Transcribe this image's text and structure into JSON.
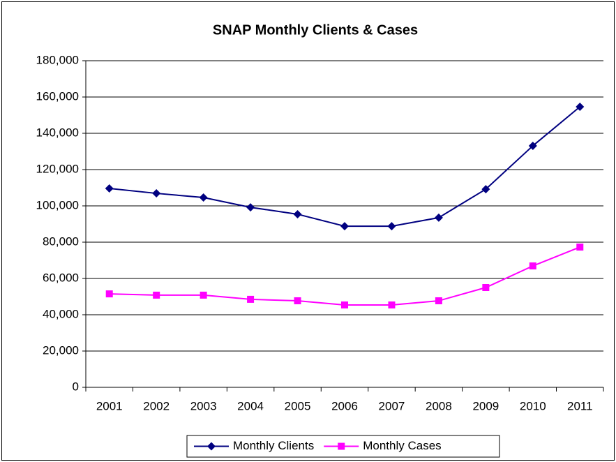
{
  "chart_data": {
    "type": "line",
    "title": "SNAP Monthly Clients & Cases",
    "categories": [
      "2001",
      "2002",
      "2003",
      "2004",
      "2005",
      "2006",
      "2007",
      "2008",
      "2009",
      "2010",
      "2011"
    ],
    "series": [
      {
        "name": "Monthly Clients",
        "color": "#000080",
        "marker": "diamond",
        "values": [
          109600,
          106900,
          104600,
          99200,
          95400,
          88800,
          88800,
          93500,
          109200,
          133100,
          154600
        ]
      },
      {
        "name": "Monthly Cases",
        "color": "#ff00ff",
        "marker": "square",
        "values": [
          51500,
          50800,
          50800,
          48500,
          47700,
          45400,
          45400,
          47700,
          55000,
          66900,
          77300
        ]
      }
    ],
    "ylim": [
      0,
      180000
    ],
    "yticks": [
      0,
      {
        "value": 20000,
        "label": "20,000"
      },
      {
        "value": 40000,
        "label": "40,000"
      },
      {
        "value": 60000,
        "label": "60,000"
      },
      {
        "value": 80000,
        "label": "80,000"
      },
      {
        "value": 100000,
        "label": "100,000"
      },
      {
        "value": 120000,
        "label": "120,000"
      },
      {
        "value": 140000,
        "label": "140,000"
      },
      {
        "value": 160000,
        "label": "160,000"
      },
      {
        "value": 180000,
        "label": "180,000"
      }
    ],
    "grid": true,
    "legend": "bottom"
  }
}
